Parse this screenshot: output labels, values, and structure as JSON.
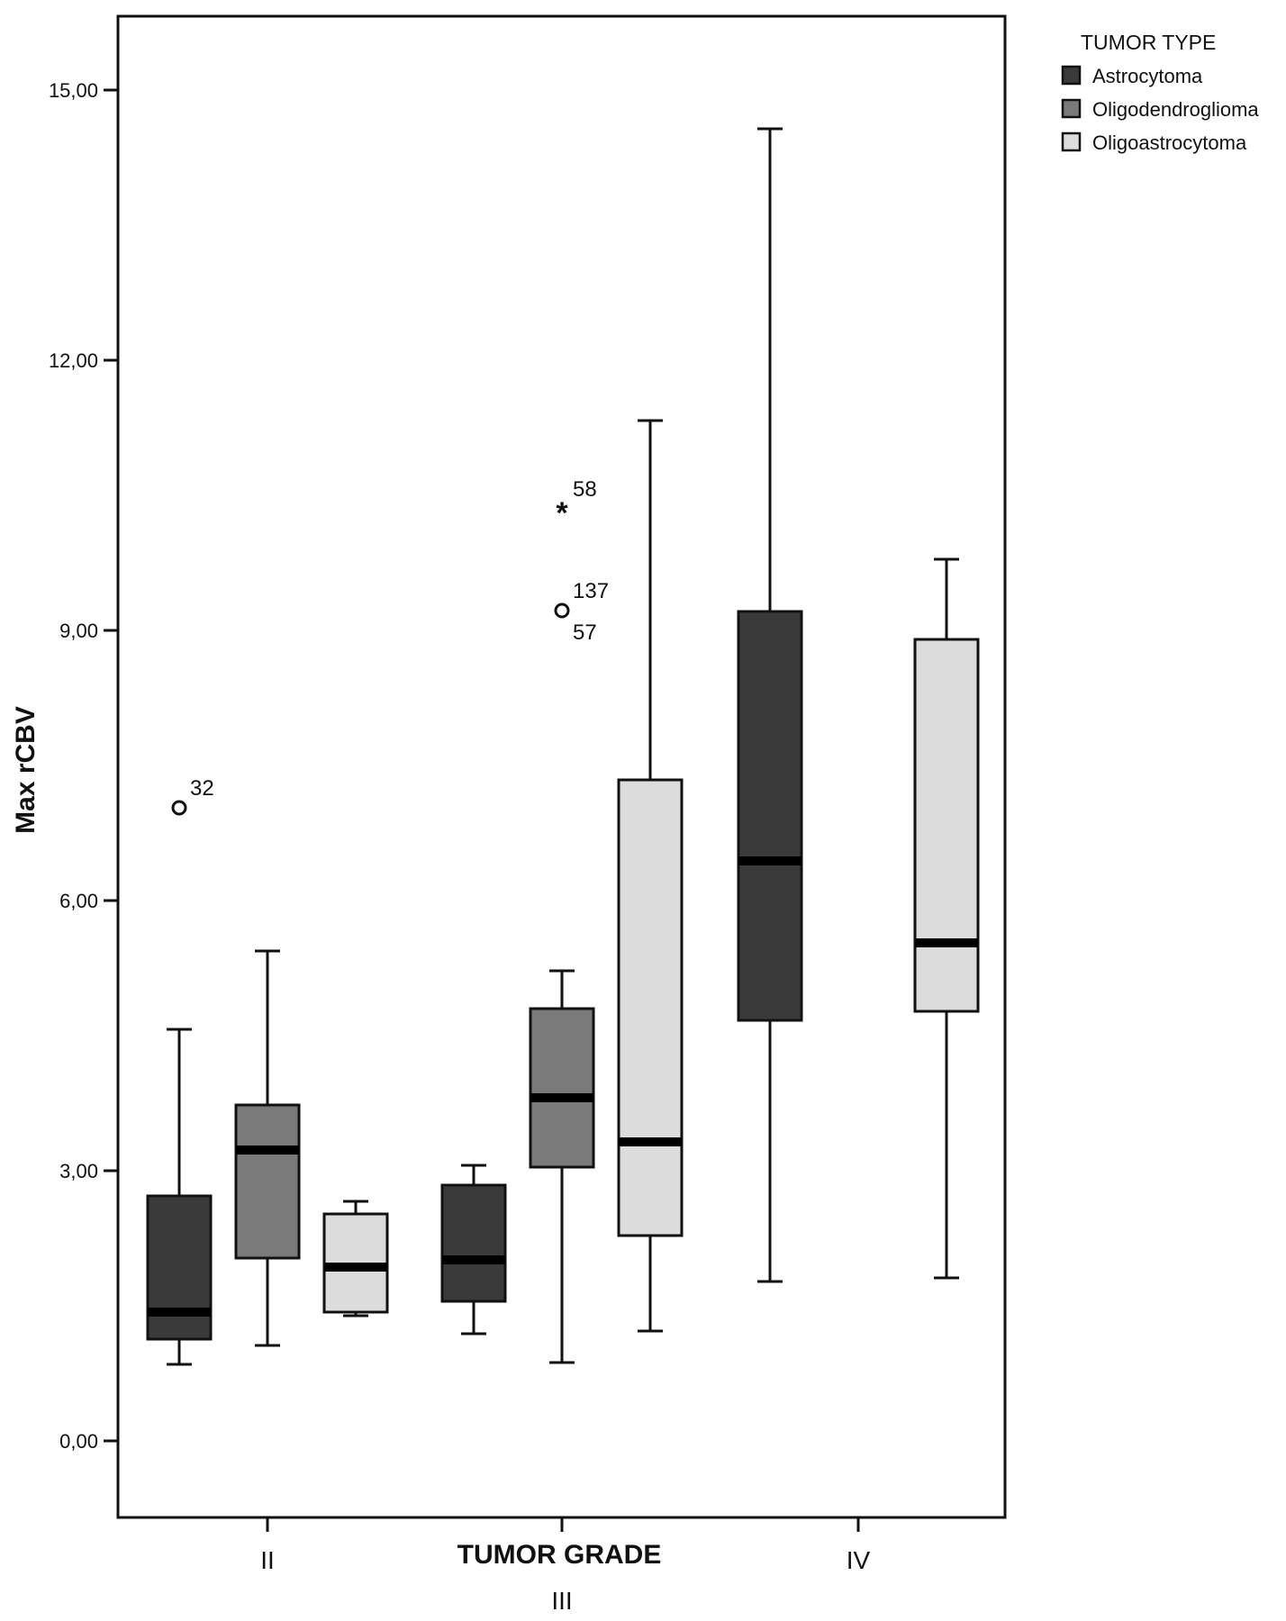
{
  "chart_data": {
    "type": "boxplot",
    "xlabel": "TUMOR GRADE",
    "ylabel": "Max rCBV",
    "ylim": [
      -0.8,
      15.8
    ],
    "yticks": [
      0,
      3,
      6,
      9,
      12,
      15
    ],
    "ytick_labels": [
      "0,00",
      "3,00",
      "6,00",
      "9,00",
      "12,00",
      "15,00"
    ],
    "categories": [
      "II",
      "III",
      "IV"
    ],
    "legend": {
      "title": "TUMOR TYPE",
      "position": "top-right",
      "entries": [
        "Astrocytoma",
        "Oligodendroglioma",
        "Oligoastrocytoma"
      ]
    },
    "series": [
      {
        "name": "Astrocytoma",
        "color": "#3a3a3a",
        "boxes": [
          {
            "category": "II",
            "min": 0.85,
            "q1": 1.13,
            "median": 1.43,
            "q3": 2.72,
            "max": 4.57
          },
          {
            "category": "III",
            "min": 1.19,
            "q1": 1.55,
            "median": 2.01,
            "q3": 2.84,
            "max": 3.06
          },
          {
            "category": "IV",
            "min": 1.77,
            "q1": 4.67,
            "median": 6.44,
            "q3": 9.21,
            "max": 14.57
          }
        ]
      },
      {
        "name": "Oligodendroglioma",
        "color": "#7a7a7a",
        "boxes": [
          {
            "category": "II",
            "min": 1.06,
            "q1": 2.03,
            "median": 3.23,
            "q3": 3.73,
            "max": 5.44
          },
          {
            "category": "III",
            "min": 0.87,
            "q1": 3.04,
            "median": 3.81,
            "q3": 4.8,
            "max": 5.22
          }
        ]
      },
      {
        "name": "Oligoastrocytoma",
        "color": "#dcdcdc",
        "boxes": [
          {
            "category": "II",
            "min": 1.39,
            "q1": 1.43,
            "median": 1.93,
            "q3": 2.52,
            "max": 2.66
          },
          {
            "category": "III",
            "min": 1.22,
            "q1": 2.28,
            "median": 3.32,
            "q3": 7.34,
            "max": 11.33
          },
          {
            "category": "IV",
            "min": 1.81,
            "q1": 4.77,
            "median": 5.53,
            "q3": 8.9,
            "max": 9.79
          }
        ]
      }
    ],
    "outliers": [
      {
        "series": "Astrocytoma",
        "category": "II",
        "y": 7.03,
        "marker": "circle",
        "label": "32"
      },
      {
        "series": "Oligodendroglioma",
        "category": "III",
        "y": 9.22,
        "marker": "circle",
        "label": "137",
        "label2": "57"
      },
      {
        "series": "Oligodendroglioma",
        "category": "III",
        "y": 10.35,
        "marker": "star",
        "label": "58"
      }
    ]
  }
}
